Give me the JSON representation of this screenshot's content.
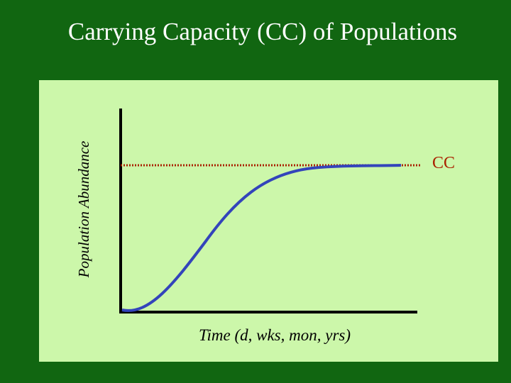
{
  "title": "Carrying Capacity (CC) of Populations",
  "y_axis_label": "Population Abundance",
  "x_axis_label": "Time (d, wks, mon, yrs)",
  "capacity_label": "CC"
}
